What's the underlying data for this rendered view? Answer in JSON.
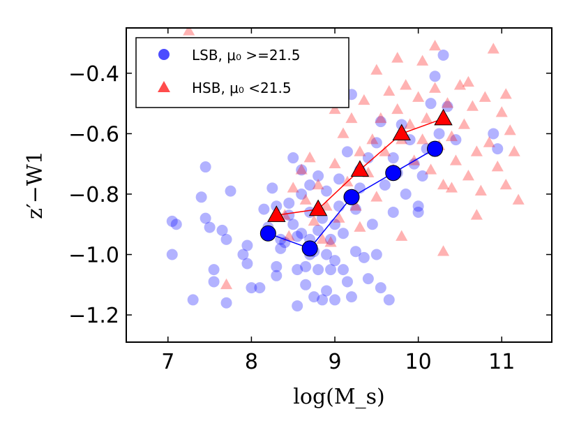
{
  "chart_data": {
    "type": "scatter",
    "xlabel": "log(M_s)",
    "ylabel": "z′−W1",
    "xlim": [
      6.5,
      11.6
    ],
    "ylim": [
      -1.29,
      -0.25
    ],
    "xticks": [
      7,
      8,
      9,
      10,
      11
    ],
    "xtick_labels": [
      "7",
      "8",
      "9",
      "10",
      "11"
    ],
    "yticks": [
      -1.2,
      -1.0,
      -0.8,
      -0.6,
      -0.4
    ],
    "ytick_labels": [
      "−1.2",
      "−1.0",
      "−0.8",
      "−0.6",
      "−0.4"
    ],
    "legend": {
      "placement": "top-left",
      "entries": [
        {
          "marker": "circle",
          "label": "LSB, μ₀ >=21.5"
        },
        {
          "marker": "triangle",
          "label": "HSB, μ₀ <21.5"
        }
      ]
    },
    "colors": {
      "lsb": "#0000ff",
      "hsb": "#ff0000",
      "lsb_line": "#0000ff",
      "hsb_line": "#ff0000"
    },
    "series": [
      {
        "name": "LSB",
        "marker": "circle",
        "alpha": 0.3,
        "points": [
          [
            7.05,
            -0.89
          ],
          [
            7.1,
            -0.9
          ],
          [
            7.05,
            -1.0
          ],
          [
            7.3,
            -1.15
          ],
          [
            7.4,
            -0.81
          ],
          [
            7.45,
            -0.71
          ],
          [
            7.45,
            -0.88
          ],
          [
            7.5,
            -0.91
          ],
          [
            7.55,
            -1.05
          ],
          [
            7.55,
            -1.09
          ],
          [
            7.65,
            -0.92
          ],
          [
            7.7,
            -0.95
          ],
          [
            7.7,
            -1.16
          ],
          [
            7.75,
            -0.79
          ],
          [
            7.9,
            -1.0
          ],
          [
            7.95,
            -0.97
          ],
          [
            7.95,
            -1.03
          ],
          [
            8.0,
            -1.11
          ],
          [
            8.1,
            -1.11
          ],
          [
            8.15,
            -0.85
          ],
          [
            8.2,
            -0.91
          ],
          [
            8.25,
            -0.78
          ],
          [
            8.3,
            -0.84
          ],
          [
            8.3,
            -1.07
          ],
          [
            8.35,
            -0.95
          ],
          [
            8.35,
            -0.98
          ],
          [
            8.4,
            -0.96
          ],
          [
            8.45,
            -0.83
          ],
          [
            8.45,
            -0.87
          ],
          [
            8.5,
            -0.9
          ],
          [
            8.5,
            -0.68
          ],
          [
            8.55,
            -1.05
          ],
          [
            8.55,
            -1.17
          ],
          [
            8.6,
            -0.93
          ],
          [
            8.6,
            -0.72
          ],
          [
            8.6,
            -0.8
          ],
          [
            8.65,
            -1.04
          ],
          [
            8.65,
            -1.1
          ],
          [
            8.7,
            -0.77
          ],
          [
            8.7,
            -0.86
          ],
          [
            8.7,
            -1.0
          ],
          [
            8.75,
            -1.14
          ],
          [
            8.75,
            -0.99
          ],
          [
            8.8,
            -0.74
          ],
          [
            8.8,
            -0.92
          ],
          [
            8.8,
            -1.05
          ],
          [
            8.85,
            -1.15
          ],
          [
            8.85,
            -0.88
          ],
          [
            8.9,
            -1.0
          ],
          [
            8.9,
            -1.12
          ],
          [
            8.9,
            -0.79
          ],
          [
            8.95,
            -0.95
          ],
          [
            8.95,
            -1.05
          ],
          [
            9.0,
            -0.9
          ],
          [
            9.0,
            -1.02
          ],
          [
            9.0,
            -1.15
          ],
          [
            9.05,
            -0.75
          ],
          [
            9.05,
            -0.84
          ],
          [
            9.1,
            -0.93
          ],
          [
            9.1,
            -1.05
          ],
          [
            9.15,
            -1.09
          ],
          [
            9.15,
            -0.66
          ],
          [
            9.2,
            -1.14
          ],
          [
            9.25,
            -0.99
          ],
          [
            9.25,
            -0.85
          ],
          [
            9.3,
            -0.78
          ],
          [
            9.3,
            -0.72
          ],
          [
            9.35,
            -1.01
          ],
          [
            9.4,
            -0.68
          ],
          [
            9.4,
            -1.08
          ],
          [
            9.45,
            -0.9
          ],
          [
            9.5,
            -0.63
          ],
          [
            9.5,
            -1.0
          ],
          [
            9.55,
            -1.11
          ],
          [
            9.55,
            -0.56
          ],
          [
            9.6,
            -0.77
          ],
          [
            9.65,
            -1.15
          ],
          [
            9.7,
            -0.68
          ],
          [
            9.7,
            -0.86
          ],
          [
            9.75,
            -0.73
          ],
          [
            9.8,
            -0.57
          ],
          [
            9.85,
            -0.8
          ],
          [
            9.9,
            -0.62
          ],
          [
            9.95,
            -0.7
          ],
          [
            10.0,
            -0.84
          ],
          [
            10.0,
            -0.86
          ],
          [
            10.05,
            -0.74
          ],
          [
            10.1,
            -0.65
          ],
          [
            10.15,
            -0.5
          ],
          [
            10.2,
            -0.41
          ],
          [
            10.25,
            -0.6
          ],
          [
            10.3,
            -0.34
          ],
          [
            10.35,
            -0.51
          ],
          [
            10.45,
            -0.62
          ],
          [
            10.9,
            -0.6
          ],
          [
            10.95,
            -0.65
          ],
          [
            8.55,
            -0.94
          ],
          [
            8.7,
            -0.95
          ],
          [
            9.2,
            -0.47
          ],
          [
            8.3,
            -1.04
          ]
        ]
      },
      {
        "name": "HSB",
        "marker": "triangle",
        "alpha": 0.3,
        "points": [
          [
            7.25,
            -0.26
          ],
          [
            7.7,
            -1.1
          ],
          [
            8.4,
            -0.87
          ],
          [
            8.5,
            -0.78
          ],
          [
            8.6,
            -0.72
          ],
          [
            8.65,
            -0.82
          ],
          [
            8.7,
            -0.68
          ],
          [
            8.75,
            -0.89
          ],
          [
            8.8,
            -0.77
          ],
          [
            8.85,
            -0.95
          ],
          [
            8.9,
            -0.84
          ],
          [
            8.95,
            -0.96
          ],
          [
            9.0,
            -0.7
          ],
          [
            9.05,
            -0.88
          ],
          [
            9.1,
            -0.6
          ],
          [
            9.15,
            -0.76
          ],
          [
            9.2,
            -0.55
          ],
          [
            9.25,
            -0.84
          ],
          [
            9.3,
            -0.66
          ],
          [
            9.3,
            -0.91
          ],
          [
            9.35,
            -0.49
          ],
          [
            9.4,
            -0.73
          ],
          [
            9.45,
            -0.62
          ],
          [
            9.5,
            -0.81
          ],
          [
            9.55,
            -0.55
          ],
          [
            9.6,
            -0.66
          ],
          [
            9.65,
            -0.46
          ],
          [
            9.7,
            -0.72
          ],
          [
            9.75,
            -0.52
          ],
          [
            9.8,
            -0.62
          ],
          [
            9.85,
            -0.44
          ],
          [
            9.9,
            -0.57
          ],
          [
            9.95,
            -0.69
          ],
          [
            10.0,
            -0.48
          ],
          [
            10.05,
            -0.62
          ],
          [
            10.1,
            -0.55
          ],
          [
            10.15,
            -0.72
          ],
          [
            10.2,
            -0.45
          ],
          [
            10.25,
            -0.64
          ],
          [
            10.3,
            -0.77
          ],
          [
            10.35,
            -0.5
          ],
          [
            10.4,
            -0.61
          ],
          [
            10.45,
            -0.69
          ],
          [
            10.5,
            -0.44
          ],
          [
            10.55,
            -0.57
          ],
          [
            10.6,
            -0.74
          ],
          [
            10.65,
            -0.51
          ],
          [
            10.7,
            -0.66
          ],
          [
            10.75,
            -0.79
          ],
          [
            10.8,
            -0.48
          ],
          [
            10.85,
            -0.63
          ],
          [
            10.9,
            -0.32
          ],
          [
            10.95,
            -0.71
          ],
          [
            11.0,
            -0.53
          ],
          [
            11.05,
            -0.77
          ],
          [
            11.1,
            -0.59
          ],
          [
            11.15,
            -0.66
          ],
          [
            11.2,
            -0.82
          ],
          [
            9.0,
            -0.52
          ],
          [
            8.45,
            -0.94
          ],
          [
            9.5,
            -0.39
          ],
          [
            9.75,
            -0.35
          ],
          [
            10.05,
            -0.36
          ],
          [
            10.2,
            -0.31
          ],
          [
            10.3,
            -0.99
          ],
          [
            9.8,
            -0.94
          ],
          [
            10.4,
            -0.78
          ],
          [
            10.6,
            -0.43
          ],
          [
            11.05,
            -0.47
          ],
          [
            10.7,
            -0.87
          ]
        ]
      },
      {
        "name": "LSB binned median",
        "marker": "circle-line",
        "points": [
          [
            8.2,
            -0.93
          ],
          [
            8.7,
            -0.98
          ],
          [
            9.2,
            -0.81
          ],
          [
            9.7,
            -0.73
          ],
          [
            10.2,
            -0.65
          ]
        ]
      },
      {
        "name": "HSB binned median",
        "marker": "triangle-line",
        "points": [
          [
            8.3,
            -0.87
          ],
          [
            8.8,
            -0.85
          ],
          [
            9.3,
            -0.72
          ],
          [
            9.8,
            -0.6
          ],
          [
            10.3,
            -0.55
          ]
        ]
      }
    ]
  }
}
